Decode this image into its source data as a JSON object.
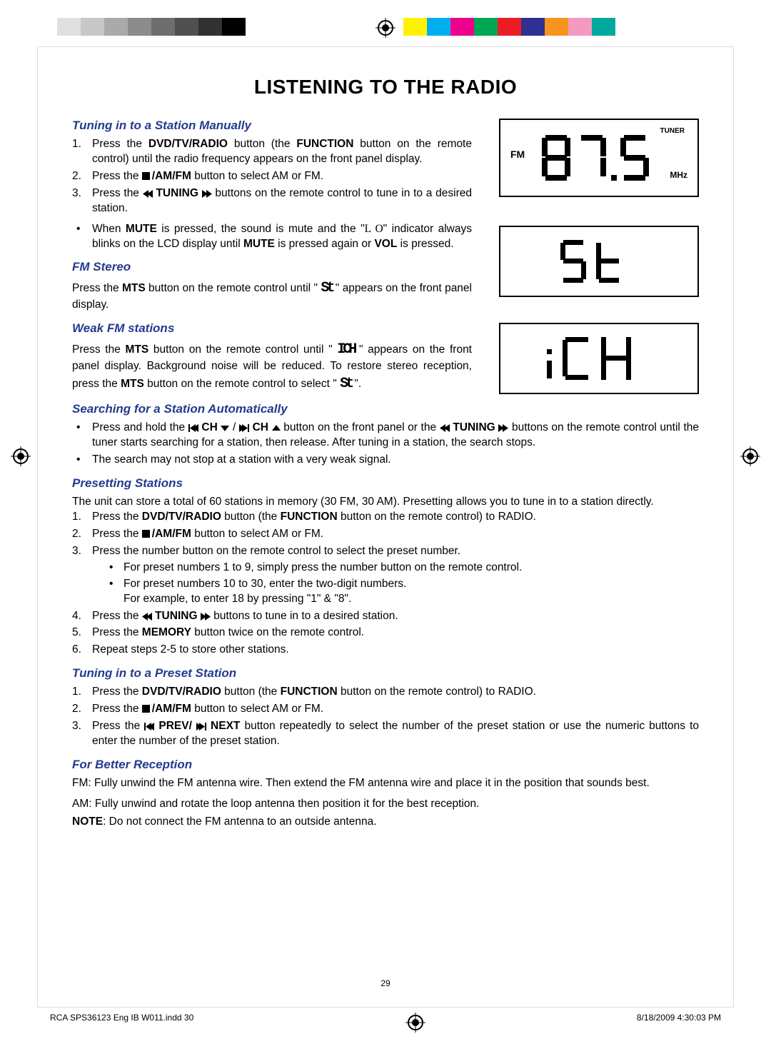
{
  "regmark_swatches_left": [
    "#e0e0e0",
    "#c8c8c8",
    "#aaaaaa",
    "#8c8c8c",
    "#6e6e6e",
    "#505050",
    "#323232",
    "#000000"
  ],
  "regmark_swatches_right": [
    "#fff200",
    "#00aeef",
    "#ec008c",
    "#00a651",
    "#ed1c24",
    "#2e3192",
    "#f7941d",
    "#f49ac1",
    "#00a99d"
  ],
  "page_title": "LISTENING TO THE RADIO",
  "section_tuning_manual": "Tuning in to a Station Manually",
  "manual_steps": [
    {
      "n": "1.",
      "pre": "Press the ",
      "b1": "DVD/TV/RADIO",
      "mid": " button (the ",
      "b2": "FUNCTION",
      "post": " button on the remote control) until the radio frequency appears on the front panel display."
    },
    {
      "n": "2.",
      "pre": "Press the ",
      "stop": true,
      "b1": "/AM/FM",
      "post": " button to select AM or FM."
    },
    {
      "n": "3.",
      "pre": "Press the ",
      "rew": true,
      "b1": "TUNING",
      "ff": true,
      "post": " buttons on the remote control to tune in to a desired station."
    }
  ],
  "mute_line_pre": "When ",
  "mute_b": "MUTE",
  "mute_mid": " is pressed, the sound is mute and the \"",
  "mute_lo": "L  O",
  "mute_mid2": "\" indicator always blinks on the LCD display until ",
  "mute_b2": "MUTE",
  "mute_mid3": " is pressed again or ",
  "mute_b3": "VOL",
  "mute_post": " is pressed.",
  "section_fm_stereo": "FM Stereo",
  "fm_stereo_pre": "Press the ",
  "fm_stereo_b": "MTS",
  "fm_stereo_mid": " button on the remote control until \" ",
  "fm_stereo_glyph": "St",
  "fm_stereo_post": " \" appears on the front panel display.",
  "section_weak": "Weak FM stations",
  "weak_pre": "Press the ",
  "weak_b": "MTS",
  "weak_mid": " button on the remote control until \" ",
  "weak_glyph": "ICH",
  "weak_mid2": " \" appears on the front panel display. Background noise will be reduced. To restore stereo reception, press the ",
  "weak_b2": "MTS",
  "weak_mid3": " button on the remote control to select \" ",
  "weak_glyph2": "St",
  "weak_post": " \".",
  "section_search": "Searching for a Station Automatically",
  "search_pre": "Press and hold the ",
  "search_b1": "CH",
  "search_mid1": " / ",
  "search_b2": "CH",
  "search_mid2": " button on the front panel or the ",
  "search_b3": "TUNING",
  "search_post": " buttons on the remote control until the tuner starts searching for a station, then release. After tuning in a station, the search stops.",
  "search_line2": "The search may not stop at a station with a very weak signal.",
  "section_preset": "Presetting Stations",
  "preset_intro": "The unit can store a total of 60 stations in memory (30 FM, 30 AM). Presetting allows you to tune in to a station directly.",
  "preset_steps": [
    {
      "n": "1.",
      "pre": "Press the ",
      "b1": "DVD/TV/RADIO",
      "mid": " button (the ",
      "b2": "FUNCTION",
      "post": " button on the remote control) to RADIO."
    },
    {
      "n": "2.",
      "pre": "Press the ",
      "stop": true,
      "b1": "/AM/FM",
      "post": " button to select AM or FM."
    },
    {
      "n": "3.",
      "text": "Press the number button on the remote control to select the preset number.",
      "sub": [
        "For preset numbers 1 to 9, simply press the number button on the remote control.",
        "For preset numbers 10 to 30, enter the two-digit numbers.\nFor example, to enter 18 by pressing \"1\" & \"8\"."
      ]
    },
    {
      "n": "4.",
      "pre": "Press the ",
      "rew": true,
      "b1": "TUNING",
      "ff": true,
      "post": " buttons to tune in to a desired station."
    },
    {
      "n": "5.",
      "pre": "Press the ",
      "b1": "MEMORY",
      "post": " button twice on the remote control."
    },
    {
      "n": "6.",
      "text": "Repeat steps 2-5 to store other stations."
    }
  ],
  "section_tune_preset": "Tuning in to a Preset Station",
  "tune_preset_steps": [
    {
      "n": "1.",
      "pre": "Press the ",
      "b1": "DVD/TV/RADIO",
      "mid": " button (the ",
      "b2": "FUNCTION",
      "post": " button on the remote control) to RADIO."
    },
    {
      "n": "2.",
      "pre": "Press the ",
      "stop": true,
      "b1": "/AM/FM",
      "post": " button to select AM or FM."
    },
    {
      "n": "3.",
      "pre": "Press the ",
      "prev": true,
      "b1": "PREV/",
      "next": true,
      "b2": "NEXT",
      "post": " button repeatedly to select the number of the preset station or use the numeric buttons to enter the number of the preset station."
    }
  ],
  "section_reception": "For Better Reception",
  "reception_fm": "FM: Fully unwind the FM antenna wire. Then extend the FM antenna wire and place it in the position that sounds best.",
  "reception_am": "AM: Fully unwind and rotate the loop antenna then position it for the best reception.",
  "reception_note_b": "NOTE",
  "reception_note": ": Do not connect the FM antenna to an outside antenna.",
  "lcd1": {
    "tuner": "TUNER",
    "fm": "FM",
    "freq": "87.5",
    "mhz": "MHz"
  },
  "lcd2_glyph": "St",
  "lcd3_glyph": "ICH",
  "page_number": "29",
  "footer_left": "RCA SPS36123 Eng IB W011.indd   30",
  "footer_right": "8/18/2009   4:30:03 PM"
}
